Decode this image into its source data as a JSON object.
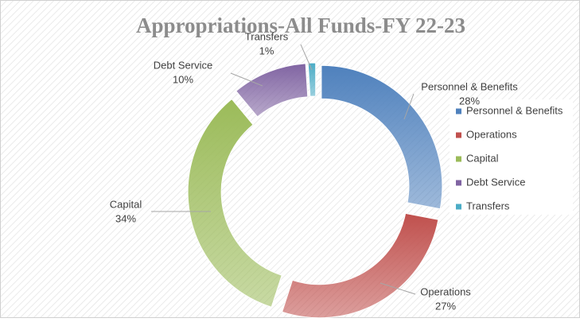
{
  "chart_data": {
    "type": "donut",
    "title": "Appropriations-All Funds-FY 22-23",
    "categories": [
      "Personnel & Benefits",
      "Operations",
      "Capital",
      "Debt Service",
      "Transfers"
    ],
    "values": [
      28,
      27,
      34,
      10,
      1
    ],
    "value_labels": [
      "28%",
      "27%",
      "34%",
      "10%",
      "1%"
    ],
    "colors": [
      "#4f81bd",
      "#c0504d",
      "#9bbb59",
      "#8064a2",
      "#4bacc6"
    ],
    "legend": "right"
  }
}
